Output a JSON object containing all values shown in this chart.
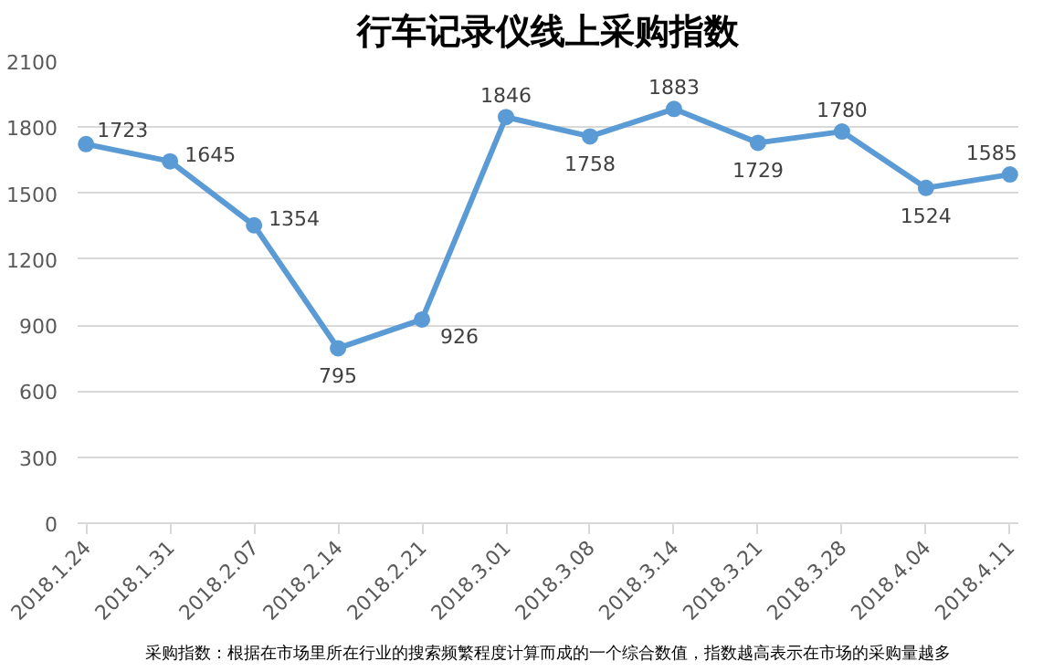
{
  "chart_data": {
    "type": "line",
    "title": "行车记录仪线上采购指数",
    "categories": [
      "2018.1.24",
      "2018.1.31",
      "2018.2.07",
      "2018.2.14",
      "2018.2.21",
      "2018.3.01",
      "2018.3.08",
      "2018.3.14",
      "2018.3.21",
      "2018.3.28",
      "2018.4.04",
      "2018.4.11"
    ],
    "series": [
      {
        "color": "#5b9bd5",
        "values": [
          1723,
          1645,
          1354,
          795,
          926,
          1846,
          1758,
          1883,
          1729,
          1780,
          1524,
          1585
        ]
      }
    ],
    "ylim": [
      0,
      2100
    ],
    "yticks": [
      0,
      300,
      600,
      900,
      1200,
      1500,
      1800,
      2100
    ],
    "grid": "y",
    "marker": "circle",
    "line_style": "solid",
    "data_labels": true,
    "annotations": [
      "采购指数：根据在市场里所在行业的搜索频繁程度计算而成的一个综合数值，指数越高表示在市场的采购量越多"
    ]
  }
}
